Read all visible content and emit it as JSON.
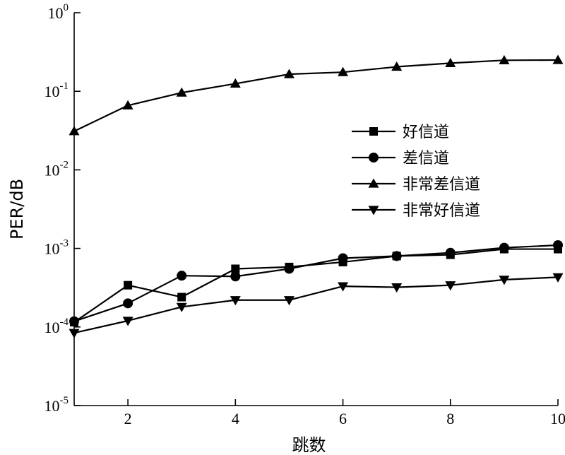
{
  "chart_data": {
    "type": "line",
    "title": "",
    "xlabel": "跳数",
    "ylabel": "PER/dB",
    "x": [
      1,
      2,
      3,
      4,
      5,
      6,
      7,
      8,
      9,
      10
    ],
    "xlim": [
      1,
      10
    ],
    "xticks": [
      "2",
      "4",
      "6",
      "8",
      "10"
    ],
    "ylim": [
      1e-05,
      1
    ],
    "yscale": "log",
    "yticks": [
      {
        "base": "10",
        "exp": "0"
      },
      {
        "base": "10",
        "exp": "-1"
      },
      {
        "base": "10",
        "exp": "-2"
      },
      {
        "base": "10",
        "exp": "-3"
      },
      {
        "base": "10",
        "exp": "-4"
      },
      {
        "base": "10",
        "exp": "-5"
      }
    ],
    "grid": false,
    "legend_position": "center-right",
    "line_color": "#000000",
    "series": [
      {
        "name": "好信道",
        "marker": "square",
        "values": [
          0.000115,
          0.00034,
          0.00024,
          0.00055,
          0.00058,
          0.00067,
          0.0008,
          0.00083,
          0.00098,
          0.00098
        ]
      },
      {
        "name": "差信道",
        "marker": "circle",
        "values": [
          0.000118,
          0.0002,
          0.00045,
          0.00044,
          0.00055,
          0.00075,
          0.0008,
          0.00088,
          0.00102,
          0.0011
        ]
      },
      {
        "name": "非常差信道",
        "marker": "triangle-up",
        "values": [
          0.031,
          0.066,
          0.096,
          0.125,
          0.165,
          0.175,
          0.205,
          0.228,
          0.248,
          0.25
        ]
      },
      {
        "name": "非常好信道",
        "marker": "triangle-down",
        "values": [
          8.4e-05,
          0.00012,
          0.00018,
          0.00022,
          0.00022,
          0.00033,
          0.00032,
          0.00034,
          0.0004,
          0.00043
        ]
      }
    ]
  }
}
